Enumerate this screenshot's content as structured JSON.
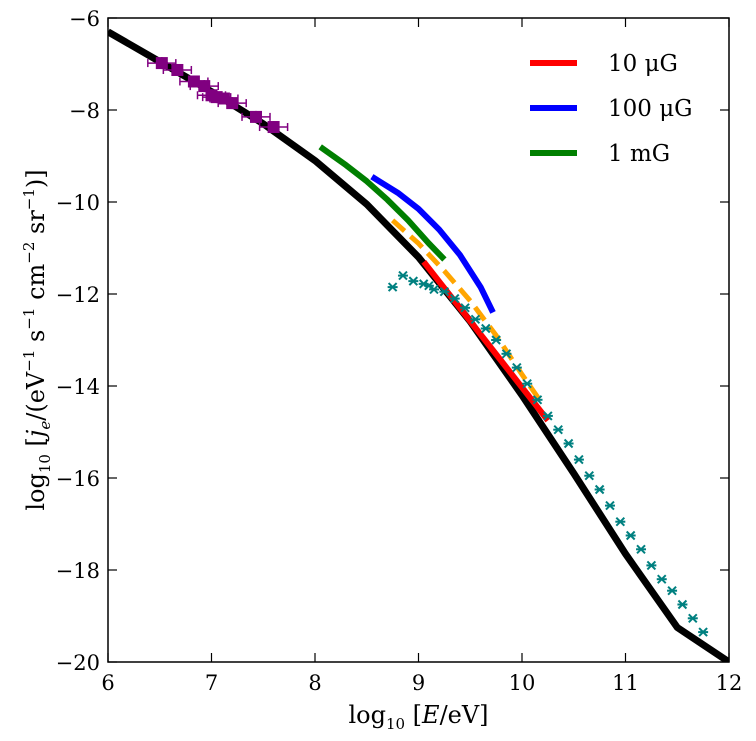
{
  "chart_data": {
    "type": "line",
    "xlabel": "log10 [E/eV]",
    "ylabel": "log10 [je/(eV−1 s−1 cm−2 sr−1)]",
    "xlim": [
      6,
      12
    ],
    "ylim": [
      -20,
      -6
    ],
    "x_ticks": [
      6,
      7,
      8,
      9,
      10,
      11,
      12
    ],
    "y_ticks": [
      -20,
      -18,
      -16,
      -14,
      -12,
      -10,
      -8,
      -6
    ],
    "x_tick_labels": [
      "6",
      "7",
      "8",
      "9",
      "10",
      "11",
      "12"
    ],
    "y_tick_labels": [
      "−20",
      "−18",
      "−16",
      "−14",
      "−12",
      "−10",
      "−8",
      "−6"
    ],
    "grid": false,
    "legend_position": "top-right",
    "legend": [
      {
        "label": "10 μG",
        "color": "#ff0000"
      },
      {
        "label": "100 μG",
        "color": "#0000ff"
      },
      {
        "label": "1 mG",
        "color": "#007f00"
      }
    ],
    "series": [
      {
        "name": "10 μG",
        "color": "#ff0000",
        "x": [
          9.05,
          10.25
        ],
        "y": [
          -11.3,
          -14.75
        ]
      },
      {
        "name": "100 μG",
        "color": "#0000ff",
        "x": [
          8.55,
          8.8,
          9.0,
          9.2,
          9.4,
          9.6,
          9.72
        ],
        "y": [
          -9.45,
          -9.8,
          -10.15,
          -10.6,
          -11.15,
          -11.85,
          -12.4
        ]
      },
      {
        "name": "1 mG",
        "color": "#007f00",
        "x": [
          8.05,
          8.3,
          8.5,
          8.7,
          8.9,
          9.1,
          9.25
        ],
        "y": [
          -8.8,
          -9.2,
          -9.55,
          -9.95,
          -10.4,
          -10.9,
          -11.25
        ]
      },
      {
        "color": "#000000",
        "x": [
          6.0,
          6.5,
          7.0,
          7.5,
          8.0,
          8.5,
          9.0,
          9.5,
          10.0,
          10.5,
          11.0,
          11.5,
          12.0
        ],
        "y": [
          -6.3,
          -6.95,
          -7.6,
          -8.3,
          -9.1,
          -10.05,
          -11.2,
          -12.6,
          -14.2,
          -15.9,
          -17.65,
          -19.25,
          -20.0
        ]
      },
      {
        "color": "#ffa500",
        "x": [
          8.75,
          9.0,
          9.25,
          9.5,
          9.75,
          10.0,
          10.2
        ],
        "y": [
          -10.4,
          -10.9,
          -11.5,
          -12.15,
          -12.9,
          -13.75,
          -14.4
        ]
      }
    ],
    "points": [
      {
        "color": "#800080",
        "x": [
          6.52,
          6.67,
          6.83,
          6.93,
          7.0,
          7.05,
          7.12,
          7.2,
          7.43,
          7.6
        ],
        "y": [
          -6.98,
          -7.13,
          -7.38,
          -7.48,
          -7.68,
          -7.72,
          -7.75,
          -7.85,
          -8.15,
          -8.37
        ]
      },
      {
        "color": "#008080",
        "x": [
          8.75,
          8.85,
          8.95,
          9.05,
          9.1,
          9.15,
          9.25,
          9.35,
          9.45,
          9.55,
          9.65,
          9.75,
          9.85,
          9.95,
          10.05,
          10.15,
          10.25,
          10.35,
          10.45,
          10.55,
          10.65,
          10.75,
          10.85,
          10.95,
          11.05,
          11.15,
          11.25,
          11.35,
          11.45,
          11.55,
          11.65,
          11.75
        ],
        "y": [
          -11.85,
          -11.6,
          -11.72,
          -11.78,
          -11.82,
          -11.9,
          -11.95,
          -12.1,
          -12.3,
          -12.55,
          -12.75,
          -13.0,
          -13.3,
          -13.6,
          -13.95,
          -14.3,
          -14.65,
          -14.95,
          -15.25,
          -15.6,
          -15.95,
          -16.25,
          -16.6,
          -16.95,
          -17.25,
          -17.55,
          -17.9,
          -18.2,
          -18.45,
          -18.75,
          -19.05,
          -19.35
        ]
      }
    ]
  }
}
